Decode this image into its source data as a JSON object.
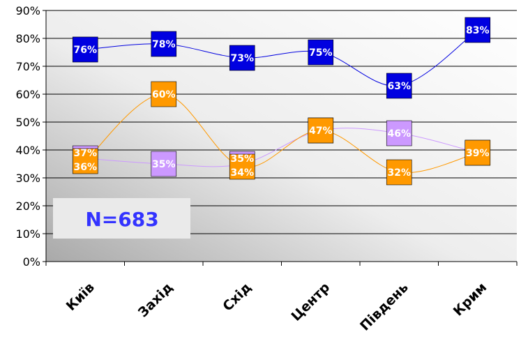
{
  "chart_data": {
    "type": "line",
    "categories": [
      "Київ",
      "Захід",
      "Схід",
      "Центр",
      "Південь",
      "Крим"
    ],
    "ylim": [
      0,
      90
    ],
    "y_tick_step": 10,
    "y_tick_suffix": "%",
    "grid": true,
    "smooth": true,
    "series": [
      {
        "values": [
          76,
          78,
          73,
          75,
          63,
          83
        ],
        "marker_color": "#0000e0",
        "line_color": "#0000e0"
      },
      {
        "values": [
          36,
          60,
          34,
          47,
          32,
          39
        ],
        "marker_color": "#ff9900",
        "line_color": "#ff9900"
      },
      {
        "values": [
          37,
          35,
          35,
          47,
          46,
          39
        ],
        "marker_color": "#cc99ff",
        "line_color": "#cc99ff"
      }
    ],
    "data_labels": [
      [
        "76%",
        "78%",
        "73%",
        "75%",
        "63%",
        "83%"
      ],
      [
        "36%",
        "60%",
        "34%",
        "47%",
        "32%",
        "39%"
      ],
      [
        "37%",
        "35%",
        "35%",
        "",
        "46%",
        ""
      ]
    ],
    "annotation": "N=683"
  }
}
